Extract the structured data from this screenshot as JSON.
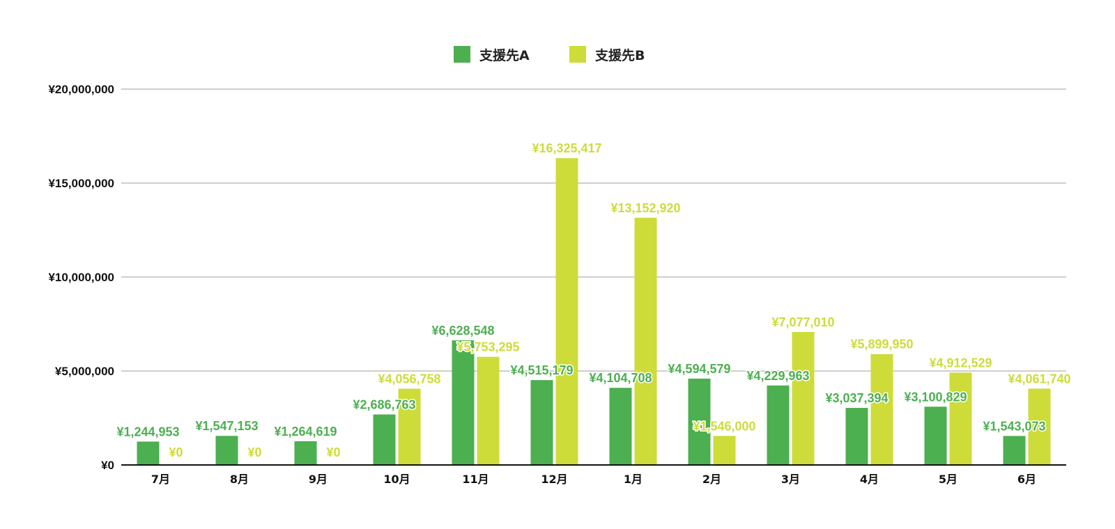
{
  "colors": {
    "series_a": "#4caf50",
    "series_b": "#cddc39",
    "grid": "#9e9e9e",
    "axis": "#111111",
    "text": "#111111"
  },
  "chart_data": {
    "type": "bar",
    "title": "",
    "xlabel": "",
    "ylabel": "",
    "legend_position": "top-center",
    "grid": true,
    "ylim": [
      0,
      20000000
    ],
    "y_ticks": [
      0,
      5000000,
      10000000,
      15000000,
      20000000
    ],
    "y_tick_labels": [
      "¥0",
      "¥5,000,000",
      "¥10,000,000",
      "¥15,000,000",
      "¥20,000,000"
    ],
    "categories": [
      "7月",
      "8月",
      "9月",
      "10月",
      "11月",
      "12月",
      "1月",
      "2月",
      "3月",
      "4月",
      "5月",
      "6月"
    ],
    "series": [
      {
        "name": "支援先A",
        "color": "#4caf50",
        "values": [
          1244953,
          1547153,
          1264619,
          2686763,
          6628548,
          4515179,
          4104708,
          4594579,
          4229963,
          3037394,
          3100829,
          1543073
        ],
        "labels": [
          "¥1,244,953",
          "¥1,547,153",
          "¥1,264,619",
          "¥2,686,763",
          "¥6,628,548",
          "¥4,515,179",
          "¥4,104,708",
          "¥4,594,579",
          "¥4,229,963",
          "¥3,037,394",
          "¥3,100,829",
          "¥1,543,073"
        ]
      },
      {
        "name": "支援先B",
        "color": "#cddc39",
        "values": [
          0,
          0,
          0,
          4056758,
          5753295,
          16325417,
          13152920,
          1546000,
          7077010,
          5899950,
          4912529,
          4061740
        ],
        "labels": [
          "¥0",
          "¥0",
          "¥0",
          "¥4,056,758",
          "¥5,753,295",
          "¥16,325,417",
          "¥13,152,920",
          "¥1,546,000",
          "¥7,077,010",
          "¥5,899,950",
          "¥4,912,529",
          "¥4,061,740"
        ]
      }
    ]
  }
}
